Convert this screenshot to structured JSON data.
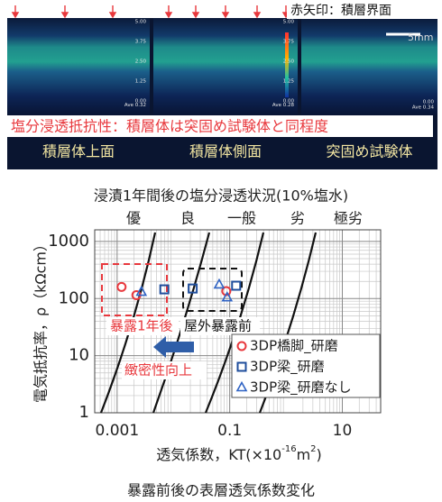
{
  "figure": {
    "note": "赤矢印：積層界面",
    "scale": "5mm",
    "panels": [
      {
        "label": "積層体上面",
        "scale_labels": [
          "5.00",
          "3.75",
          "2.50",
          "1.25",
          "0.00",
          "Ave 0.32"
        ]
      },
      {
        "label": "積層体側面",
        "scale_labels": [
          "5.00",
          "3.75",
          "2.50",
          "1.25",
          "0.00",
          "Ave 0.28"
        ]
      },
      {
        "label": "突固め試験体",
        "scale_labels": [
          "0.00",
          "Ave 0.34"
        ]
      }
    ],
    "banner": "塩分浸透抵抗性：積層体は突固め試験体と同程度",
    "caption": "浸漬1年間後の塩分浸透状況(10%塩水)"
  },
  "chart_data": {
    "type": "scatter",
    "title": "暴露前後の表層透気係数変化",
    "xlabel": [
      "透気係数，KT(×10",
      "-16",
      "m",
      "2",
      ")"
    ],
    "ylabel": "電気抵抗率，ρ（kΩcm）",
    "xscale": "log",
    "yscale": "log",
    "xlim": [
      0.0004,
      48
    ],
    "ylim": [
      1,
      1600
    ],
    "xticks": [
      0.001,
      0.1,
      10
    ],
    "yticks": [
      1,
      10,
      100,
      1000
    ],
    "grid": true,
    "grades": [
      "優",
      "良",
      "一般",
      "劣",
      "極劣"
    ],
    "annotations": {
      "after": "暴露1年後",
      "before": "屋外暴露前",
      "improve": "緻密性向上"
    },
    "legend": "lower right",
    "series": [
      {
        "name": "3DP橋脚_研磨",
        "color": "#e8383d",
        "marker": "circle",
        "x": [
          0.0012,
          0.0022,
          0.087
        ],
        "values": [
          160,
          115,
          135
        ]
      },
      {
        "name": "3DP梁_研磨",
        "color": "#1f4e9c",
        "marker": "square",
        "x": [
          0.0069,
          0.022,
          0.13
        ],
        "values": [
          145,
          150,
          168
        ]
      },
      {
        "name": "3DP梁_研磨なし",
        "color": "#2f63c4",
        "marker": "triangle",
        "x": [
          0.0027,
          0.065,
          0.09
        ],
        "values": [
          130,
          175,
          104
        ]
      }
    ]
  }
}
